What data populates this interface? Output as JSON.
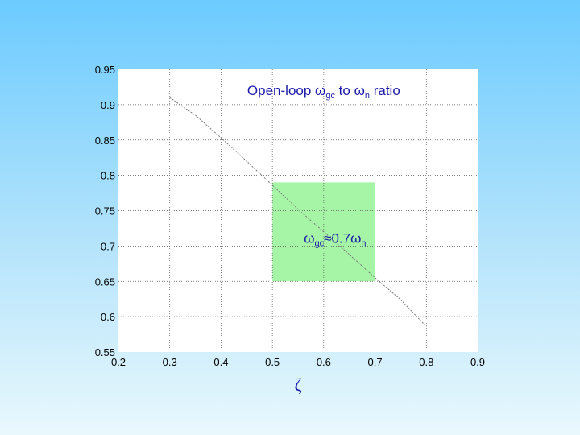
{
  "chart_data": {
    "type": "line",
    "title": "Open-loop ωgc to ωn ratio",
    "title_parts": {
      "prefix": "Open-loop ",
      "w1": "ω",
      "w1_sub": "gc",
      "mid": " to ",
      "w2": "ω",
      "w2_sub": "n",
      "suffix": " ratio"
    },
    "xlabel": "ζ",
    "ylabel": "",
    "xlim": [
      0.2,
      0.9
    ],
    "ylim": [
      0.55,
      0.95
    ],
    "xticks": [
      0.2,
      0.3,
      0.4,
      0.5,
      0.6,
      0.7,
      0.8,
      0.9
    ],
    "yticks": [
      0.55,
      0.6,
      0.65,
      0.7,
      0.75,
      0.8,
      0.85,
      0.9,
      0.95
    ],
    "xtick_labels": [
      "0.2",
      "0.3",
      "0.4",
      "0.5",
      "0.6",
      "0.7",
      "0.8",
      "0.9"
    ],
    "ytick_labels": [
      "0.55",
      "0.6",
      "0.65",
      "0.7",
      "0.75",
      "0.8",
      "0.85",
      "0.9",
      "0.95"
    ],
    "grid": true,
    "series": [
      {
        "x": [
          0.3,
          0.35,
          0.4,
          0.45,
          0.5,
          0.55,
          0.6,
          0.65,
          0.7,
          0.75,
          0.8
        ],
        "y": [
          0.91,
          0.885,
          0.853,
          0.82,
          0.786,
          0.752,
          0.72,
          0.688,
          0.655,
          0.624,
          0.586
        ]
      }
    ],
    "highlight_region": {
      "x": [
        0.5,
        0.7
      ],
      "y": [
        0.65,
        0.79
      ],
      "color": "#a6f5a6"
    },
    "annotation": {
      "x": 0.6,
      "y": 0.7,
      "w1": "ω",
      "w1_sub": "gc",
      "mid": "≈0.7",
      "w2": "ω",
      "w2_sub": "n"
    }
  },
  "colors": {
    "plot_background": "#ffffff",
    "text_accent": "#1a1aa8",
    "grid": "#555555",
    "curve": "#777777"
  }
}
